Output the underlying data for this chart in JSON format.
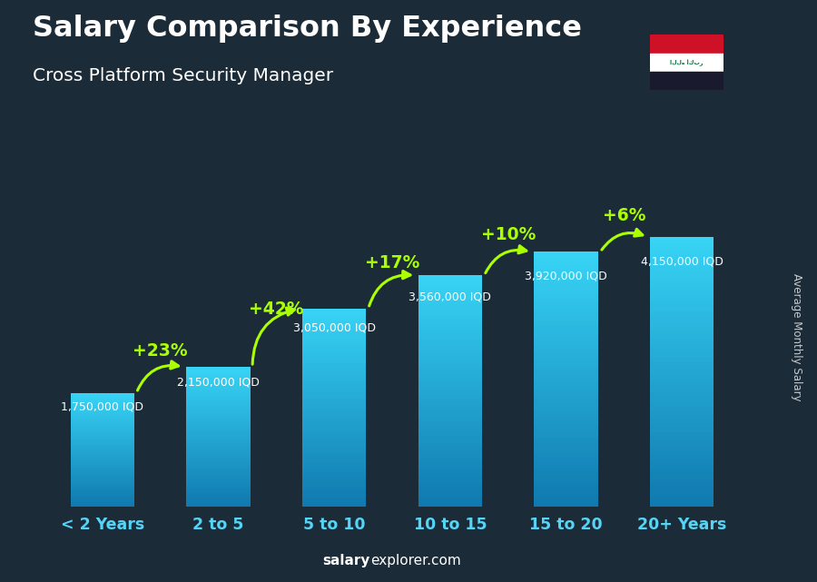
{
  "title": "Salary Comparison By Experience",
  "subtitle": "Cross Platform Security Manager",
  "categories": [
    "< 2 Years",
    "2 to 5",
    "5 to 10",
    "10 to 15",
    "15 to 20",
    "20+ Years"
  ],
  "values": [
    1750000,
    2150000,
    3050000,
    3560000,
    3920000,
    4150000
  ],
  "value_labels": [
    "1,750,000 IQD",
    "2,150,000 IQD",
    "3,050,000 IQD",
    "3,560,000 IQD",
    "3,920,000 IQD",
    "4,150,000 IQD"
  ],
  "pct_labels": [
    "+23%",
    "+42%",
    "+17%",
    "+10%",
    "+6%"
  ],
  "bar_color_main": "#29b6e8",
  "bar_color_light": "#55d4f5",
  "bar_color_dark": "#1a8ab5",
  "bg_color": "#1c2b38",
  "title_color": "#ffffff",
  "subtitle_color": "#ffffff",
  "label_color": "#ffffff",
  "pct_color": "#aaff00",
  "tick_color": "#55d4f5",
  "ylabel": "Average Monthly Salary",
  "ylim_max": 5200000,
  "footer_salary_color": "#ffffff",
  "footer_explorer_color": "#ffffff"
}
